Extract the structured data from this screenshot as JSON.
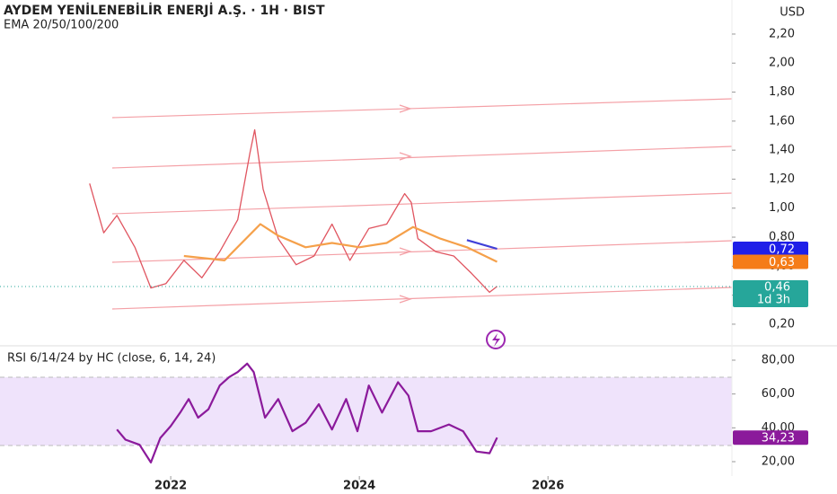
{
  "chart_data": [
    {
      "type": "line",
      "title": "AYDEM YENİLENEBİLİR ENERJİ A.Ş. · 1H · BIST",
      "subtitle": "EMA 20/50/100/200",
      "currency": "USD",
      "xlim": [
        2020.19,
        2027.95
      ],
      "ylim": [
        0.051,
        2.435
      ],
      "yticks": [
        {
          "value": 0.2,
          "label": "0,20"
        },
        {
          "value": 0.4,
          "label": "0,40"
        },
        {
          "value": 0.6,
          "label": "0,60"
        },
        {
          "value": 0.8,
          "label": "0,80"
        },
        {
          "value": 1.0,
          "label": "1,00"
        },
        {
          "value": 1.2,
          "label": "1,20"
        },
        {
          "value": 1.4,
          "label": "1,40"
        },
        {
          "value": 1.6,
          "label": "1,60"
        },
        {
          "value": 1.8,
          "label": "1,80"
        },
        {
          "value": 2.0,
          "label": "2,00"
        },
        {
          "value": 2.2,
          "label": "2,20"
        }
      ],
      "series": [
        {
          "color": "#e05560",
          "x": [
            2021.14,
            2021.29,
            2021.43,
            2021.62,
            2021.79,
            2021.95,
            2022.14,
            2022.33,
            2022.52,
            2022.71,
            2022.84,
            2022.89,
            2022.98,
            2023.14,
            2023.33,
            2023.52,
            2023.71,
            2023.9,
            2024.1,
            2024.29,
            2024.48,
            2024.55,
            2024.62,
            2024.81,
            2025.0,
            2025.19,
            2025.38,
            2025.46
          ],
          "values": [
            1.17,
            0.83,
            0.95,
            0.73,
            0.45,
            0.48,
            0.64,
            0.52,
            0.7,
            0.92,
            1.38,
            1.54,
            1.13,
            0.79,
            0.61,
            0.67,
            0.89,
            0.64,
            0.86,
            0.89,
            1.1,
            1.04,
            0.79,
            0.7,
            0.67,
            0.55,
            0.42,
            0.46
          ]
        },
        {
          "color": "#f5a04a",
          "x": [
            2022.14,
            2022.57,
            2022.95,
            2023.14,
            2023.43,
            2023.71,
            2024.0,
            2024.29,
            2024.57,
            2024.86,
            2025.14,
            2025.46
          ],
          "values": [
            0.67,
            0.64,
            0.89,
            0.81,
            0.73,
            0.76,
            0.73,
            0.76,
            0.87,
            0.79,
            0.73,
            0.63
          ]
        },
        {
          "color": "#3f3fd8",
          "x": [
            2025.14,
            2025.46
          ],
          "values": [
            0.78,
            0.72
          ]
        }
      ],
      "price_labels": [
        {
          "value": 0.72,
          "label": "0,72",
          "color": "#1f1fe8"
        },
        {
          "value": 0.63,
          "label": "0,63",
          "color": "#f57c18"
        },
        {
          "value": 0.46,
          "label": "0,46",
          "color": "#26a69a"
        }
      ],
      "countdown": "1d 3h"
    },
    {
      "type": "line",
      "title": "RSI 6/14/24 by HC (close, 6, 14, 24)",
      "xlim": [
        2020.19,
        2027.95
      ],
      "ylim": [
        11.5,
        86.9
      ],
      "xticks": [
        2022,
        2024,
        2026
      ],
      "yticks": [
        {
          "value": 20,
          "label": "20,00"
        },
        {
          "value": 40,
          "label": "40,00"
        },
        {
          "value": 60,
          "label": "60,00"
        },
        {
          "value": 80,
          "label": "80,00"
        }
      ],
      "series": [
        {
          "color": "#8b1a9b",
          "x": [
            2021.43,
            2021.52,
            2021.67,
            2021.79,
            2021.89,
            2022.0,
            2022.1,
            2022.19,
            2022.29,
            2022.4,
            2022.52,
            2022.62,
            2022.71,
            2022.81,
            2022.88,
            2023.0,
            2023.14,
            2023.29,
            2023.43,
            2023.57,
            2023.71,
            2023.86,
            2023.98,
            2024.1,
            2024.24,
            2024.41,
            2024.52,
            2024.62,
            2024.76,
            2024.95,
            2025.1,
            2025.24,
            2025.38,
            2025.46
          ],
          "values": [
            39,
            33,
            30,
            19.5,
            34,
            41,
            49,
            57,
            46,
            51,
            65,
            70,
            73,
            78,
            73,
            46,
            57,
            38,
            43,
            54,
            39,
            57,
            38,
            65,
            49,
            67,
            59,
            38,
            38,
            42,
            38,
            26,
            25,
            34.23
          ]
        }
      ],
      "price_labels": [
        {
          "value": 34.23,
          "label": "34,23",
          "color": "#8b1a9b"
        }
      ]
    }
  ]
}
